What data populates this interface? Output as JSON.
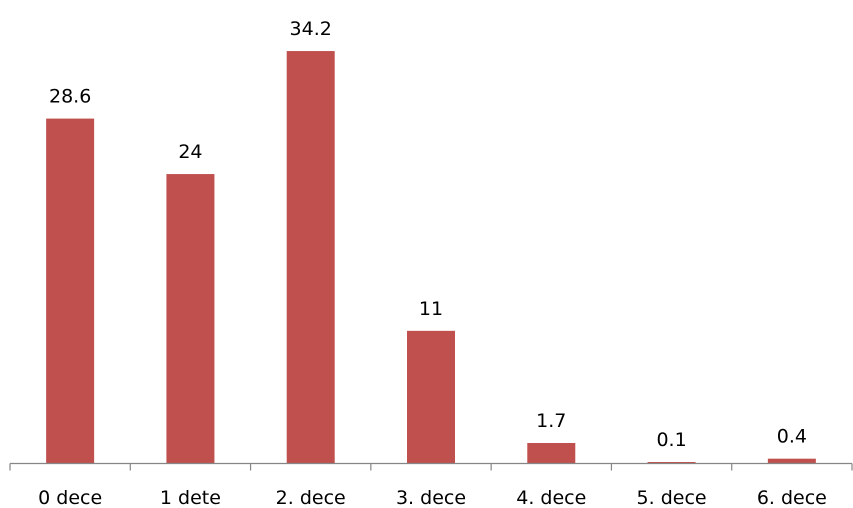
{
  "chart_data": {
    "type": "bar",
    "categories": [
      "0 dece",
      "1 dete",
      "2. dece",
      "3. dece",
      "4. dece",
      "5. dece",
      "6. dece"
    ],
    "values": [
      28.6,
      24,
      34.2,
      11,
      1.7,
      0.1,
      0.4
    ],
    "value_labels": [
      "28.6",
      "24",
      "34.2",
      "11",
      "1.7",
      "0.1",
      "0.4"
    ],
    "bar_color": "#C0504D",
    "axis_color": "#868686",
    "ylim": [
      0,
      36
    ],
    "grid": false,
    "legend": "none"
  }
}
